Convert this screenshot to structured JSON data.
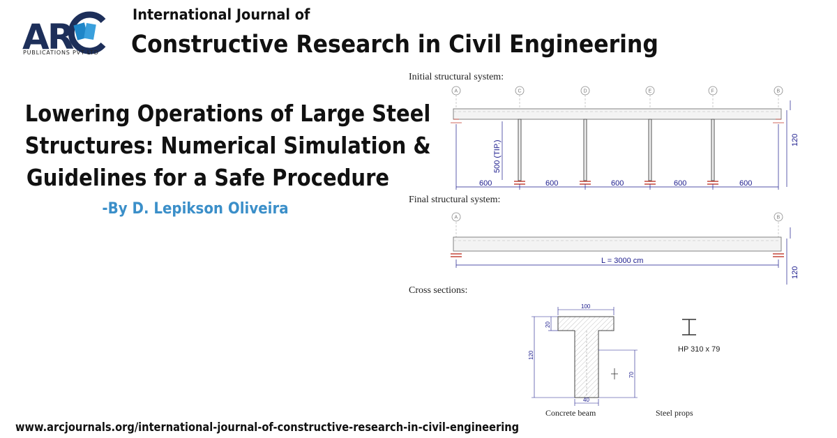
{
  "brand": {
    "logo_text": "ARC",
    "logo_subtitle": "PUBLICATIONS PVT LTD",
    "accent_blue": "#1f86c8",
    "logo_dark": "#1d2f5a"
  },
  "journal": {
    "prefix": "International Journal of",
    "name": "Constructive Research in Civil Engineering"
  },
  "article": {
    "title_lines": [
      "Lowering Operations of Large Steel",
      "Structures: Numerical Simulation &",
      "Guidelines for a Safe Procedure"
    ],
    "author": "-By D. Lepikson Oliveira"
  },
  "figure": {
    "initial_label": "Initial structural system:",
    "final_label": "Final structural system:",
    "cross_label": "Cross sections:",
    "initial_axes": [
      "A",
      "C",
      "D",
      "E",
      "F",
      "B"
    ],
    "final_axes": [
      "A",
      "B"
    ],
    "span_values": [
      "600",
      "600",
      "600",
      "600",
      "600"
    ],
    "prop_height": "500 (TIP.)",
    "height_initial": "120",
    "height_final": "120",
    "total_length": "L = 3000 cm",
    "beam_dims": {
      "flange_width": "100",
      "total_height": "120",
      "flange_thickness": "20",
      "web_width": "40",
      "centroid_height": "70"
    },
    "steel_section": "HP 310 x 79",
    "caption_beam": "Concrete beam",
    "caption_props": "Steel props"
  },
  "footer": {
    "url": "www.arcjournals.org/international-journal-of-constructive-research-in-civil-engineering"
  }
}
